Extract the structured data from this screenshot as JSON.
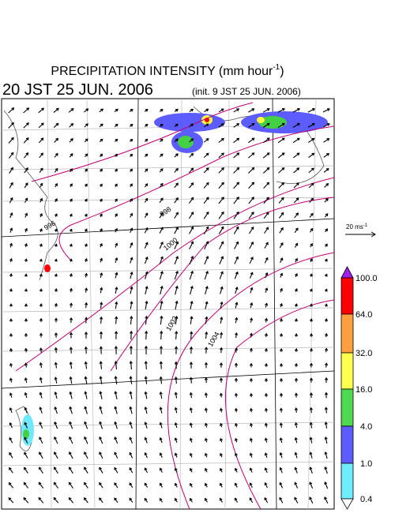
{
  "header": {
    "title": "PRECIPITATION INTENSITY (mm hour",
    "title_exponent": "-1",
    "title_end": ")",
    "valid_time": "20 JST 25 JUN. 2006",
    "init_time": "(init. 9 JST 25 JUN. 2006)"
  },
  "wind_scale": {
    "label": "20 ms",
    "exponent": "-1"
  },
  "colorbar": {
    "labels": [
      "100.0",
      "64.0",
      "32.0",
      "16.0",
      "4.0",
      "1.0",
      "0.4"
    ]
  },
  "isobars": {
    "labels": [
      "996",
      "998",
      "1000",
      "1002",
      "1004"
    ]
  }
}
